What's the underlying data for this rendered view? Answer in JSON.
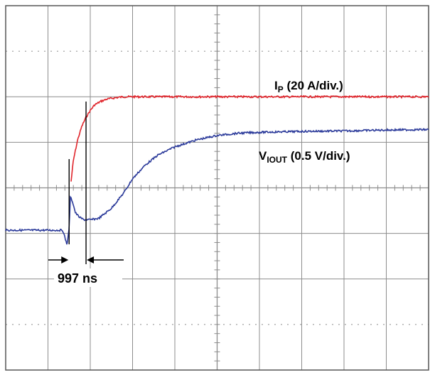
{
  "chart_data": {
    "type": "line",
    "title": "",
    "xlabel": "",
    "ylabel": "",
    "grid": true,
    "x_divisions": 10,
    "y_divisions": 8,
    "xlim": [
      0,
      10
    ],
    "ylim": [
      -4,
      4
    ],
    "colors": {
      "ip": "#e0242b",
      "viout": "#2b3a9a",
      "grid": "#8c8c8c",
      "frame": "#555555",
      "markers": "#000000"
    },
    "series": [
      {
        "key": "ip",
        "x": [
          0,
          1.5,
          1.53,
          1.6,
          1.7,
          1.8,
          1.9,
          2.0,
          2.1,
          2.25,
          2.4,
          2.6,
          2.8,
          3.0,
          3.5,
          4,
          5,
          6,
          7,
          8,
          9,
          10
        ],
        "y": [
          null,
          null,
          0.0,
          0.6,
          1.05,
          1.35,
          1.55,
          1.7,
          1.82,
          1.9,
          1.95,
          1.98,
          2.0,
          2.0,
          2.0,
          2.0,
          2.0,
          2.0,
          2.0,
          2.0,
          2.0,
          2.0
        ]
      },
      {
        "key": "viout",
        "x": [
          0,
          0.5,
          1.0,
          1.35,
          1.45,
          1.5,
          1.53,
          1.58,
          1.65,
          1.75,
          1.85,
          2.0,
          2.2,
          2.5,
          2.8,
          3.0,
          3.3,
          3.6,
          4.0,
          4.5,
          5.0,
          5.5,
          6.0,
          7.0,
          8.0,
          9.0,
          10.0
        ],
        "y": [
          -0.93,
          -0.93,
          -0.93,
          -0.93,
          -1.25,
          -0.9,
          -0.2,
          -0.3,
          -0.55,
          -0.65,
          -0.7,
          -0.7,
          -0.67,
          -0.45,
          -0.1,
          0.2,
          0.5,
          0.72,
          0.9,
          1.05,
          1.15,
          1.2,
          1.22,
          1.24,
          1.25,
          1.27,
          1.28
        ]
      }
    ],
    "markers": {
      "x1": 1.5,
      "x2": 1.9
    },
    "annotations": {
      "ip_label": {
        "main": "I",
        "sub": "P",
        "rest": " (20 A/div.)"
      },
      "viout_label": {
        "main": "V",
        "sub": "IOUT",
        "rest": " (0.5 V/div.)"
      },
      "interval_label": "997 ns"
    }
  }
}
